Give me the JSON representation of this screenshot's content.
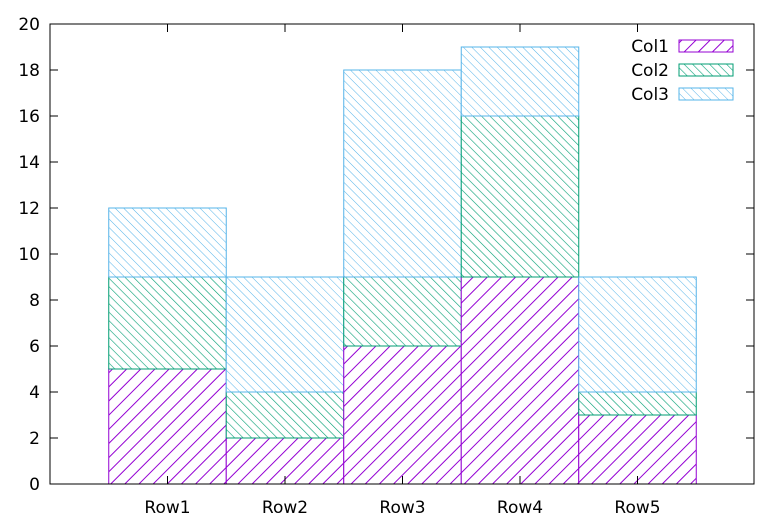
{
  "chart_data": {
    "type": "bar",
    "stacked": true,
    "categories": [
      "Row1",
      "Row2",
      "Row3",
      "Row4",
      "Row5"
    ],
    "series": [
      {
        "name": "Col1",
        "values": [
          5,
          2,
          6,
          9,
          3
        ],
        "color": "#9400d3",
        "pattern": "diagonal-up"
      },
      {
        "name": "Col2",
        "values": [
          4,
          2,
          3,
          7,
          1
        ],
        "color": "#009e73",
        "pattern": "diagonal-down"
      },
      {
        "name": "Col3",
        "values": [
          3,
          5,
          9,
          3,
          5
        ],
        "color": "#56b4e9",
        "pattern": "diagonal-down-fine"
      }
    ],
    "ylim": [
      0,
      20
    ],
    "yticks": [
      0,
      2,
      4,
      6,
      8,
      10,
      12,
      14,
      16,
      18,
      20
    ],
    "title": "",
    "xlabel": "",
    "ylabel": "",
    "legend": "top-right",
    "grid": false
  }
}
